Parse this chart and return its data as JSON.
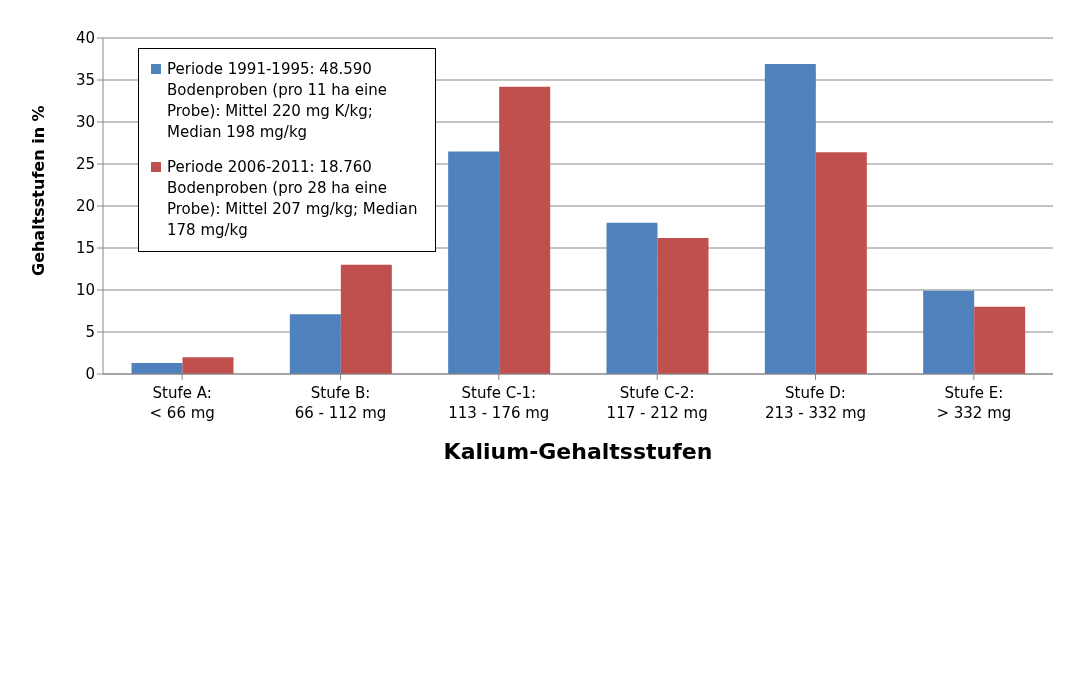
{
  "chart_data": {
    "type": "bar",
    "xlabel": "Kalium-Gehaltsstufen",
    "ylabel": "Gehaltsstufen in %",
    "categories": [
      "Stufe A:\n< 66 mg",
      "Stufe B:\n66 - 112 mg",
      "Stufe C-1:\n113 - 176 mg",
      "Stufe C-2:\n117 - 212 mg",
      "Stufe D:\n213 - 332 mg",
      "Stufe E:\n> 332 mg"
    ],
    "series": [
      {
        "name": "Periode 1991-1995: 48.590 Bodenproben (pro 11 ha eine Probe):    Mittel 220 mg K/kg; Median 198 mg/kg",
        "color": "#4f81bd",
        "values": [
          1.3,
          7.1,
          26.5,
          18.0,
          36.9,
          9.9
        ]
      },
      {
        "name": "Periode 2006-2011: 18.760 Bodenproben (pro 28 ha eine Probe):    Mittel  207 mg/kg; Median 178 mg/kg",
        "color": "#c0504d",
        "values": [
          2.0,
          13.0,
          34.2,
          16.2,
          26.4,
          8.0
        ]
      }
    ],
    "ylim": [
      0,
      40
    ],
    "yticks": [
      0,
      5,
      10,
      15,
      20,
      25,
      30,
      35,
      40
    ],
    "grid": "y",
    "legend": "top left"
  }
}
